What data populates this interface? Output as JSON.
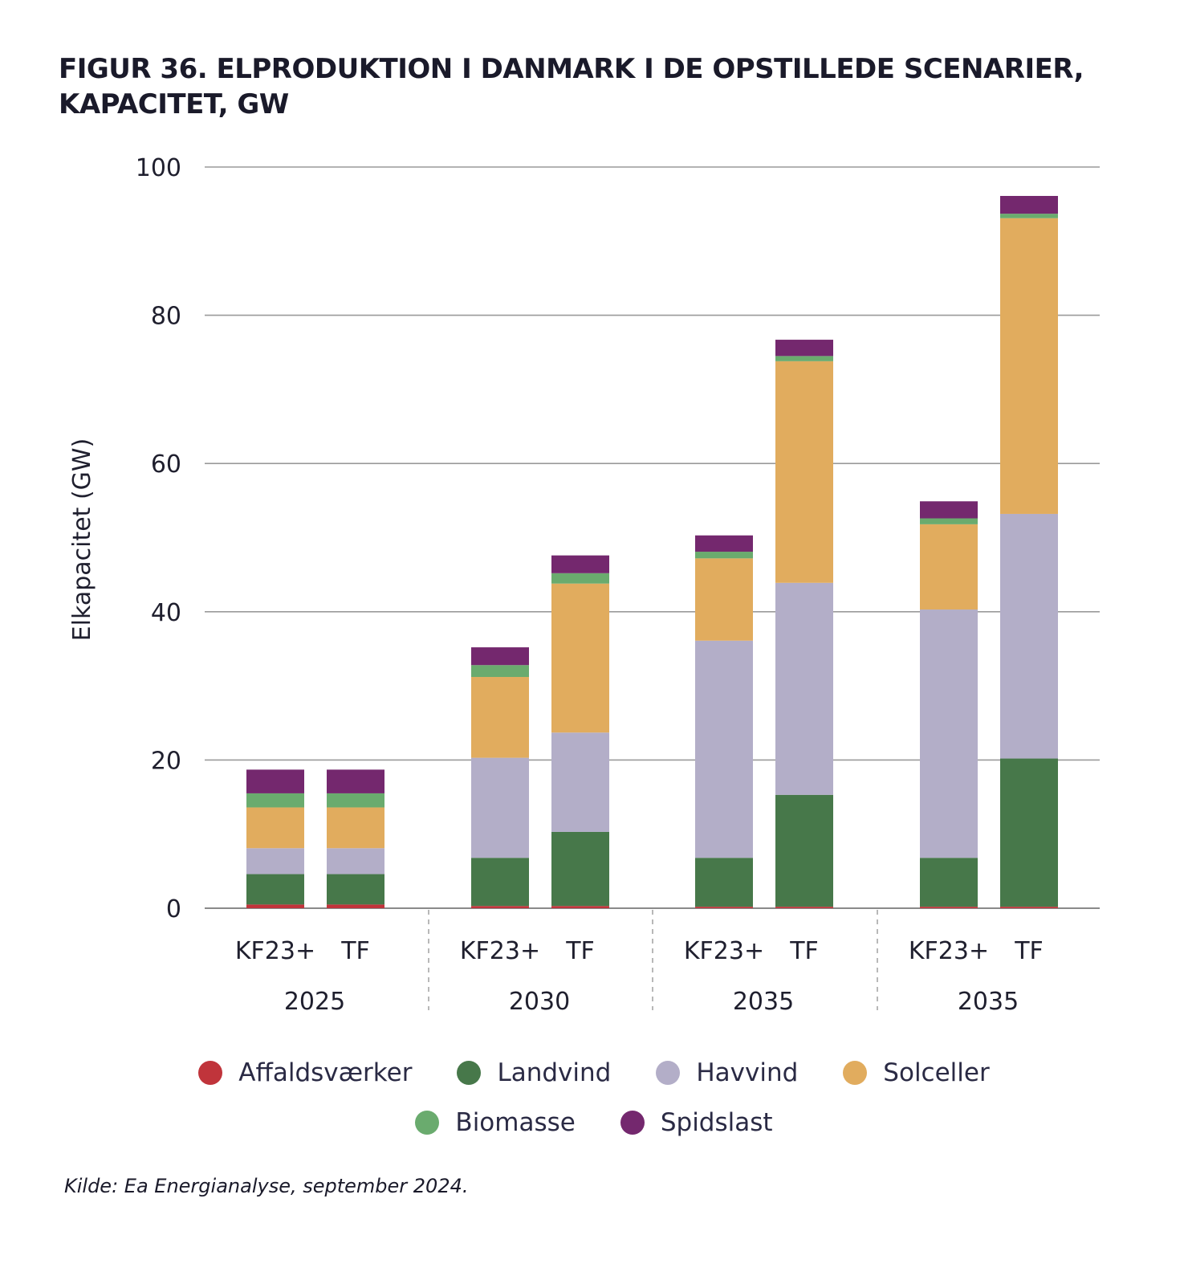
{
  "title": {
    "line1": "FIGUR 36. ELPRODUKTION I DANMARK I DE OPSTILLEDE SCENARIER,",
    "line2": "KAPACITET, GW"
  },
  "source": "Kilde: Ea Energianalyse, september 2024.",
  "colors": {
    "Affaldsværker": "#c0343b",
    "Landvind": "#47784a",
    "Havvind": "#b3aec8",
    "Solceller": "#e1ac5e",
    "Biomasse": "#6aab6e",
    "Spidslast": "#74286e"
  },
  "chart_data": {
    "type": "bar",
    "stacked": true,
    "ylabel": "Elkapacitet (GW)",
    "ylim": [
      0,
      100
    ],
    "yticks": [
      0,
      20,
      40,
      60,
      80,
      100
    ],
    "grid": true,
    "legend_position": "bottom",
    "groups": [
      "2025",
      "2030",
      "2035",
      "2035"
    ],
    "categories": [
      "KF23+",
      "TF",
      "KF23+",
      "TF",
      "KF23+",
      "TF",
      "KF23+",
      "TF"
    ],
    "group_of_category": [
      0,
      0,
      1,
      1,
      2,
      2,
      3,
      3
    ],
    "series": [
      {
        "name": "Affaldsværker",
        "values": [
          0.5,
          0.5,
          0.3,
          0.3,
          0.2,
          0.2,
          0.2,
          0.2
        ]
      },
      {
        "name": "Landvind",
        "values": [
          4.1,
          4.1,
          6.5,
          10.0,
          6.6,
          15.1,
          6.6,
          20.0
        ]
      },
      {
        "name": "Havvind",
        "values": [
          3.5,
          3.5,
          13.5,
          13.4,
          29.3,
          28.6,
          33.5,
          33.0
        ]
      },
      {
        "name": "Solceller",
        "values": [
          5.5,
          5.5,
          10.9,
          20.1,
          11.1,
          29.9,
          11.5,
          39.9
        ]
      },
      {
        "name": "Biomasse",
        "values": [
          1.9,
          1.9,
          1.6,
          1.4,
          0.9,
          0.7,
          0.8,
          0.6
        ]
      },
      {
        "name": "Spidslast",
        "values": [
          3.2,
          3.2,
          2.4,
          2.4,
          2.2,
          2.2,
          2.3,
          2.4
        ]
      }
    ]
  }
}
